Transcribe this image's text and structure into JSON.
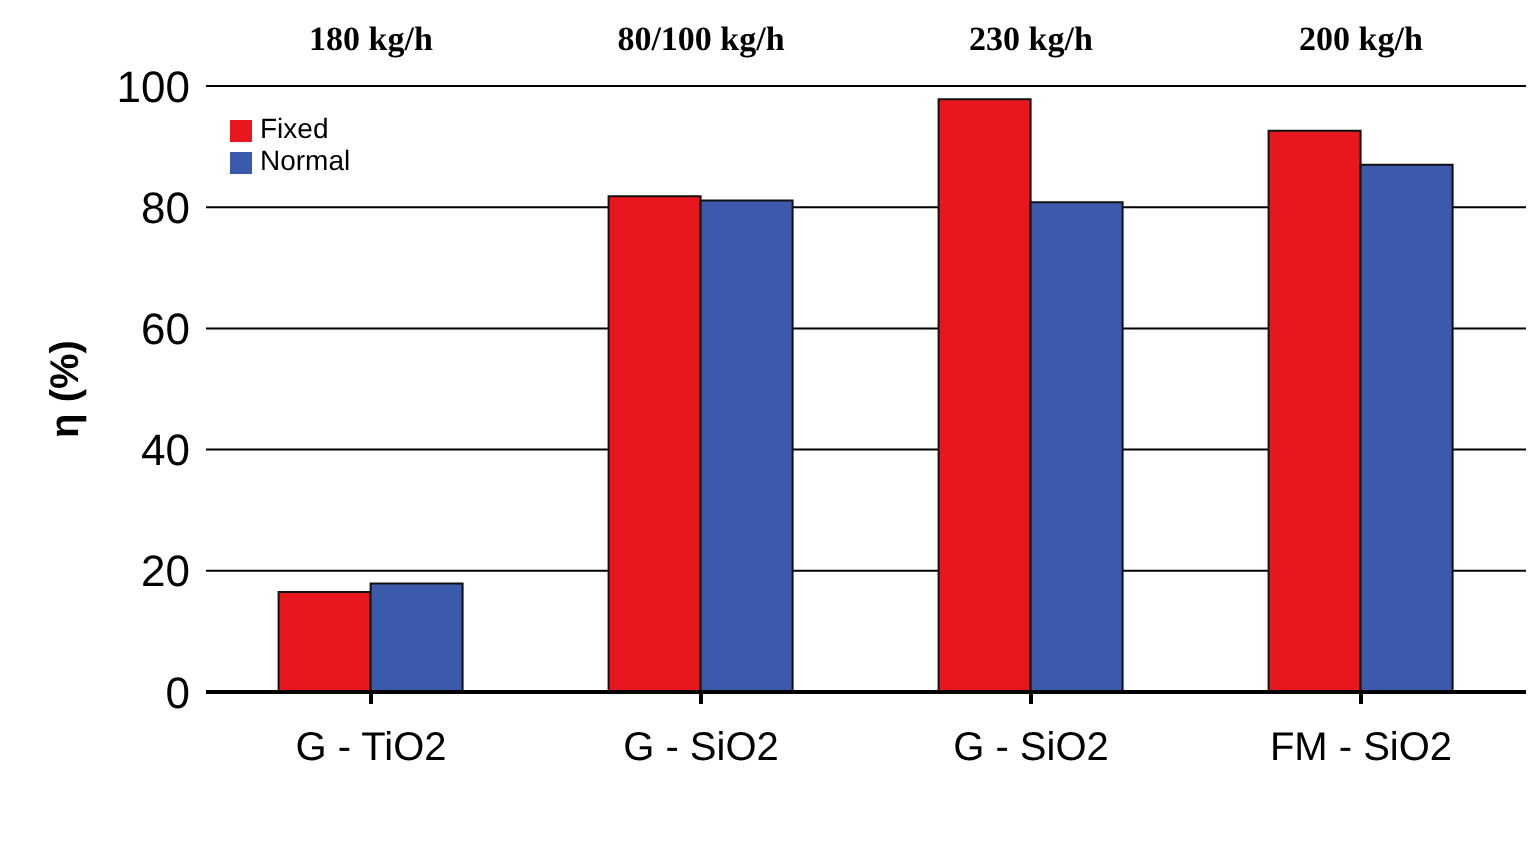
{
  "chart_data": {
    "type": "bar",
    "ylabel": "η (%)",
    "categories": [
      "G - TiO2",
      "G - SiO2",
      "G - SiO2",
      "FM - SiO2"
    ],
    "series": [
      {
        "name": "Fixed",
        "color": "#e8171d",
        "values": [
          16.5,
          81.8,
          97.8,
          92.6
        ]
      },
      {
        "name": "Normal",
        "color": "#3c5aab",
        "values": [
          17.9,
          81.1,
          80.8,
          87.0
        ]
      }
    ],
    "ylim": [
      0,
      100
    ],
    "yticks": [
      0,
      20,
      40,
      60,
      80,
      100
    ],
    "grid": "y",
    "legend": "top left",
    "annotations": [
      "180 kg/h",
      "80/100 kg/h",
      "230 kg/h",
      "200 kg/h"
    ]
  }
}
